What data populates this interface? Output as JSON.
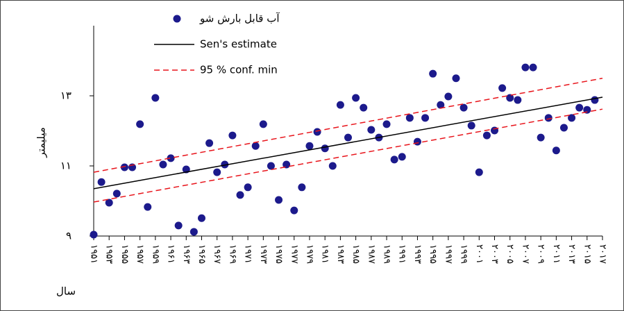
{
  "chart_data": {
    "type": "scatter",
    "xlabel": "سال",
    "ylabel": "میلیمتر",
    "xlim": [
      1951,
      2017
    ],
    "ylim": [
      9,
      15
    ],
    "yticks": [
      {
        "value": 9,
        "label": "۹"
      },
      {
        "value": 11,
        "label": "۱۱"
      },
      {
        "value": 13,
        "label": "۱۳"
      }
    ],
    "xticks": [
      {
        "value": 1951,
        "label": "۱۹۵۱"
      },
      {
        "value": 1953,
        "label": "۱۹۵۳"
      },
      {
        "value": 1955,
        "label": "۱۹۵۵"
      },
      {
        "value": 1957,
        "label": "۱۹۵۷"
      },
      {
        "value": 1959,
        "label": "۱۹۵۹"
      },
      {
        "value": 1961,
        "label": "۱۹۶۱"
      },
      {
        "value": 1963,
        "label": "۱۹۶۳"
      },
      {
        "value": 1965,
        "label": "۱۹۶۵"
      },
      {
        "value": 1967,
        "label": "۱۹۶۷"
      },
      {
        "value": 1969,
        "label": "۱۹۶۹"
      },
      {
        "value": 1971,
        "label": "۱۹۷۱"
      },
      {
        "value": 1973,
        "label": "۱۹۷۳"
      },
      {
        "value": 1975,
        "label": "۱۹۷۵"
      },
      {
        "value": 1977,
        "label": "۱۹۷۷"
      },
      {
        "value": 1979,
        "label": "۱۹۷۹"
      },
      {
        "value": 1981,
        "label": "۱۹۸۱"
      },
      {
        "value": 1983,
        "label": "۱۹۸۳"
      },
      {
        "value": 1985,
        "label": "۱۹۸۵"
      },
      {
        "value": 1987,
        "label": "۱۹۸۷"
      },
      {
        "value": 1989,
        "label": "۱۹۸۹"
      },
      {
        "value": 1991,
        "label": "۱۹۹۱"
      },
      {
        "value": 1993,
        "label": "۱۹۹۳"
      },
      {
        "value": 1995,
        "label": "۱۹۹۵"
      },
      {
        "value": 1997,
        "label": "۱۹۹۷"
      },
      {
        "value": 1999,
        "label": "۱۹۹۹"
      },
      {
        "value": 2001,
        "label": "۲۰۰۱"
      },
      {
        "value": 2003,
        "label": "۲۰۰۳"
      },
      {
        "value": 2005,
        "label": "۲۰۰۵"
      },
      {
        "value": 2007,
        "label": "۲۰۰۷"
      },
      {
        "value": 2009,
        "label": "۲۰۰۹"
      },
      {
        "value": 2011,
        "label": "۲۰۱۱"
      },
      {
        "value": 2013,
        "label": "۲۰۱۳"
      },
      {
        "value": 2015,
        "label": "۲۰۱۵"
      },
      {
        "value": 2017,
        "label": "۲۰۱۷"
      }
    ],
    "series": [
      {
        "name": "آب قابل بارش شو",
        "color": "#1c1a8c",
        "marker": "circle",
        "x": [
          1951,
          1952,
          1953,
          1954,
          1955,
          1956,
          1957,
          1958,
          1959,
          1960,
          1961,
          1962,
          1963,
          1964,
          1965,
          1966,
          1967,
          1968,
          1969,
          1970,
          1971,
          1972,
          1973,
          1974,
          1975,
          1976,
          1977,
          1978,
          1979,
          1980,
          1981,
          1982,
          1983,
          1984,
          1985,
          1986,
          1987,
          1988,
          1989,
          1990,
          1991,
          1992,
          1993,
          1994,
          1995,
          1996,
          1997,
          1998,
          1999,
          2000,
          2001,
          2002,
          2003,
          2004,
          2005,
          2006,
          2007,
          2008,
          2009,
          2010,
          2011,
          2012,
          2013,
          2014,
          2015,
          2016
        ],
        "values": [
          9.04,
          10.54,
          9.95,
          10.21,
          10.96,
          10.96,
          12.19,
          9.83,
          12.94,
          11.04,
          11.22,
          9.3,
          10.9,
          9.12,
          9.51,
          11.65,
          10.82,
          11.04,
          11.87,
          10.17,
          10.39,
          11.57,
          12.19,
          11.0,
          10.03,
          11.04,
          9.73,
          10.39,
          11.57,
          11.97,
          11.5,
          11.0,
          12.74,
          11.81,
          12.94,
          12.66,
          12.03,
          11.81,
          12.19,
          11.18,
          11.26,
          12.37,
          11.69,
          12.37,
          13.63,
          12.74,
          12.98,
          13.5,
          12.66,
          12.15,
          10.82,
          11.87,
          12.01,
          13.22,
          12.94,
          12.88,
          13.81,
          13.81,
          11.81,
          12.37,
          11.44,
          12.09,
          12.37,
          12.66,
          12.6,
          12.88
        ]
      },
      {
        "name": "Sen's estimate",
        "color": "#000000",
        "style": "solid",
        "x": [
          1951,
          2017
        ],
        "values": [
          10.35,
          12.96
        ]
      },
      {
        "name": "95 % conf. min",
        "color": "#e8141b",
        "style": "dashed",
        "x": [
          1951,
          2017
        ],
        "lines": [
          [
            9.97,
            12.62
          ],
          [
            10.82,
            13.5
          ]
        ]
      }
    ]
  }
}
